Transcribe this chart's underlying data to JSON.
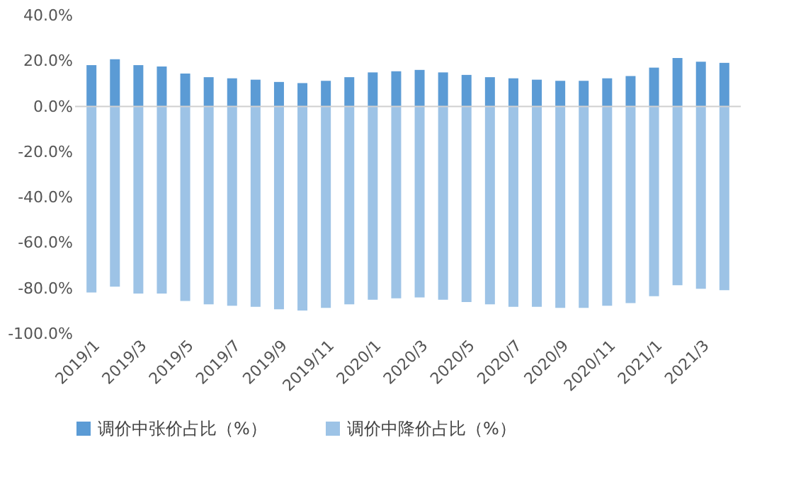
{
  "chart_data": {
    "type": "bar",
    "categories": [
      "2019/1",
      null,
      "2019/3",
      null,
      "2019/5",
      null,
      "2019/7",
      null,
      "2019/9",
      null,
      "2019/11",
      null,
      "2020/1",
      null,
      "2020/3",
      null,
      "2020/5",
      null,
      "2020/7",
      null,
      "2020/9",
      null,
      "2020/11",
      null,
      "2021/1",
      null,
      "2021/3",
      null
    ],
    "series": [
      {
        "name": "调价中张价占比（%）",
        "color": "#5b9bd5",
        "values": [
          18.2,
          20.8,
          18.2,
          17.6,
          14.5,
          12.9,
          12.4,
          11.8,
          10.8,
          10.3,
          11.3,
          12.9,
          15.0,
          15.5,
          16.1,
          15.0,
          13.9,
          12.9,
          12.4,
          11.8,
          11.3,
          11.3,
          12.4,
          13.4,
          17.1,
          21.3,
          19.7,
          19.2
        ]
      },
      {
        "name": "调价中降价占比（%）",
        "color": "#9dc3e6",
        "values": [
          -81.8,
          -79.2,
          -82.3,
          -82.3,
          -85.5,
          -87.0,
          -87.6,
          -88.1,
          -89.2,
          -89.7,
          -88.6,
          -87.0,
          -85.0,
          -84.4,
          -84.0,
          -85.0,
          -86.0,
          -87.0,
          -88.1,
          -88.1,
          -88.6,
          -88.6,
          -87.6,
          -86.5,
          -83.4,
          -78.6,
          -80.2,
          -80.8
        ]
      }
    ],
    "ylim": [
      -100,
      40
    ],
    "yticks": [
      {
        "value": -100,
        "label": "-100.0%"
      },
      {
        "value": -80,
        "label": "-80.0%"
      },
      {
        "value": -60,
        "label": "-60.0%"
      },
      {
        "value": -40,
        "label": "-40.0%"
      },
      {
        "value": -20,
        "label": "-20.0%"
      },
      {
        "value": 0,
        "label": "0.0%"
      },
      {
        "value": 20,
        "label": "20.0%"
      },
      {
        "value": 40,
        "label": "40.0%"
      }
    ],
    "stacked": true,
    "ref_lines": [
      {
        "axis": "y",
        "value": 0,
        "color": "#d0d0d0"
      }
    ],
    "grid": false,
    "legend": "bottom"
  }
}
